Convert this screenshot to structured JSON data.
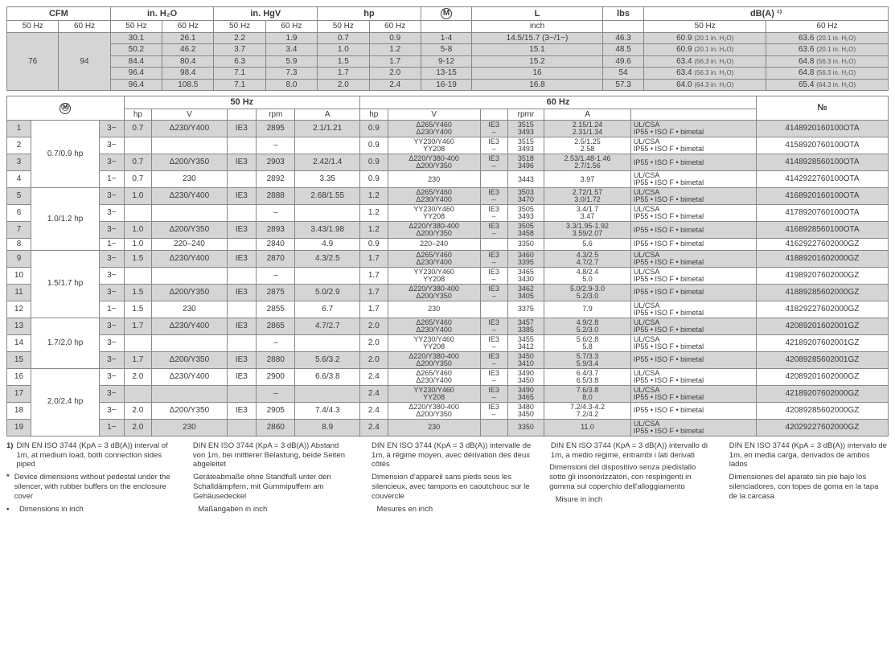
{
  "table1": {
    "groupHeaders": [
      {
        "label": "CFM",
        "span": 2
      },
      {
        "label": "in. H₂O",
        "span": 2
      },
      {
        "label": "in. HgV",
        "span": 2
      },
      {
        "label": "hp",
        "span": 2
      },
      {
        "label": "Ⓜ",
        "span": 1,
        "circled": true
      },
      {
        "label": "L",
        "span": 1
      },
      {
        "label": "lbs",
        "span": 1
      },
      {
        "label": "dB(A) ¹⁾",
        "span": 2
      }
    ],
    "subHeaders": [
      "50 Hz",
      "60 Hz",
      "50 Hz",
      "60 Hz",
      "50 Hz",
      "60 Hz",
      "50 Hz",
      "60 Hz",
      "",
      "inch",
      "",
      "50 Hz",
      "60 Hz"
    ],
    "cfm50": "76",
    "cfm60": "94",
    "dbaSmallUnit": "in. H₂O",
    "rows": [
      {
        "c": [
          "30.1",
          "26.1",
          "2.2",
          "1.9",
          "0.7",
          "0.9",
          "1-4",
          "14.5/15.7 (3~/1~)",
          "46.3"
        ],
        "db50": "60.9",
        "db50u": "(20.1",
        "db60": "63.6",
        "db60u": "(20.1"
      },
      {
        "c": [
          "50.2",
          "46.2",
          "3.7",
          "3.4",
          "1.0",
          "1.2",
          "5-8",
          "15.1",
          "48.5"
        ],
        "db50": "60.9",
        "db50u": "(20.1",
        "db60": "63.6",
        "db60u": "(20.1"
      },
      {
        "c": [
          "84.4",
          "80.4",
          "6.3",
          "5.9",
          "1.5",
          "1.7",
          "9-12",
          "15.2",
          "49.6"
        ],
        "db50": "63.4",
        "db50u": "(56.3",
        "db60": "64.8",
        "db60u": "(56.3"
      },
      {
        "c": [
          "96.4",
          "98.4",
          "7.1",
          "7.3",
          "1.7",
          "2.0",
          "13-15",
          "16",
          "54"
        ],
        "db50": "63.4",
        "db50u": "(56.3",
        "db60": "64.8",
        "db60u": "(56.3"
      },
      {
        "c": [
          "96.4",
          "108.5",
          "7.1",
          "8.0",
          "2.0",
          "2.4",
          "16-19",
          "16.8",
          "57.3"
        ],
        "db50": "64.0",
        "db50u": "(64.3",
        "db60": "65.4",
        "db60u": "(64.3"
      }
    ]
  },
  "table2": {
    "topHeaders": {
      "m": "Ⓜ",
      "hz50": "50 Hz",
      "hz60": "60 Hz",
      "no": "№"
    },
    "subHeaders50": [
      "hp",
      "V",
      "",
      "rpm",
      "A"
    ],
    "subHeaders60": [
      "hp",
      "V",
      "",
      "rpmr",
      "A",
      ""
    ],
    "groups": [
      {
        "label": "0.7/0.9 hp",
        "rows": [
          {
            "n": "1",
            "ph": "3~",
            "hp50": "0.7",
            "v50": "Δ230/Y400",
            "ie50": "IE3",
            "rpm50": "2895",
            "a50": "2.1/1.21",
            "hp60": "0.9",
            "v60a": "Δ265/Y460",
            "v60b": "Δ230/Y400",
            "ie60a": "IE3",
            "ie60b": "–",
            "rpm60a": "3515",
            "rpm60b": "3493",
            "a60a": "2.15/1.24",
            "a60b": "2.31/1.34",
            "cert": "UL/CSA\nIP55 • ISO F • bimetal",
            "no": "4148920160100OTA",
            "shaded": true
          },
          {
            "n": "2",
            "ph": "3~",
            "hp50": "",
            "v50": "",
            "ie50": "",
            "rpm50": "–",
            "a50": "",
            "hp60": "0.9",
            "v60a": "YY230/Y460",
            "v60b": "YY208",
            "ie60a": "IE3",
            "ie60b": "–",
            "rpm60a": "3515",
            "rpm60b": "3493",
            "a60a": "2.5/1.25",
            "a60b": "2.58",
            "cert": "UL/CSA\nIP55 • ISO F • bimetal",
            "no": "4158920760100OTA",
            "shaded": false
          },
          {
            "n": "3",
            "ph": "3~",
            "hp50": "0.7",
            "v50": "Δ200/Y350",
            "ie50": "IE3",
            "rpm50": "2903",
            "a50": "2.42/1.4",
            "hp60": "0.9",
            "v60a": "Δ220/Y380-400",
            "v60b": "Δ200/Y350",
            "ie60a": "IE3",
            "ie60b": "–",
            "rpm60a": "3518",
            "rpm60b": "3496",
            "a60a": "2.53/1.48-1.46",
            "a60b": "2.7/1.56",
            "cert": "IP55 • ISO F • bimetal",
            "no": "4148928560100OTA",
            "shaded": true
          },
          {
            "n": "4",
            "ph": "1~",
            "hp50": "0.7",
            "v50": "230",
            "ie50": "",
            "rpm50": "2892",
            "a50": "3.35",
            "hp60": "0.9",
            "v60a": "230",
            "v60b": "",
            "ie60a": "",
            "ie60b": "",
            "rpm60a": "3443",
            "rpm60b": "",
            "a60a": "3.97",
            "a60b": "",
            "cert": "UL/CSA\nIP55 • ISO F • bimetal",
            "no": "4142922760100OTA",
            "shaded": false
          }
        ]
      },
      {
        "label": "1.0/1.2 hp",
        "rows": [
          {
            "n": "5",
            "ph": "3~",
            "hp50": "1.0",
            "v50": "Δ230/Y400",
            "ie50": "IE3",
            "rpm50": "2888",
            "a50": "2.68/1.55",
            "hp60": "1.2",
            "v60a": "Δ265/Y460",
            "v60b": "Δ230/Y400",
            "ie60a": "IE3",
            "ie60b": "–",
            "rpm60a": "3503",
            "rpm60b": "3470",
            "a60a": "2.72/1.57",
            "a60b": "3.0/1.72",
            "cert": "UL/CSA\nIP55 • ISO F • bimetal",
            "no": "4168920160100OTA",
            "shaded": true
          },
          {
            "n": "6",
            "ph": "3~",
            "hp50": "",
            "v50": "",
            "ie50": "",
            "rpm50": "–",
            "a50": "",
            "hp60": "1.2",
            "v60a": "YY230/Y460",
            "v60b": "YY208",
            "ie60a": "IE3",
            "ie60b": "–",
            "rpm60a": "3505",
            "rpm60b": "3493",
            "a60a": "3.4/1.7",
            "a60b": "3.47",
            "cert": "UL/CSA\nIP55 • ISO F • bimetal",
            "no": "4178920760100OTA",
            "shaded": false
          },
          {
            "n": "7",
            "ph": "3~",
            "hp50": "1.0",
            "v50": "Δ200/Y350",
            "ie50": "IE3",
            "rpm50": "2893",
            "a50": "3.43/1.98",
            "hp60": "1.2",
            "v60a": "Δ220/Y380-400",
            "v60b": "Δ200/Y350",
            "ie60a": "IE3",
            "ie60b": "–",
            "rpm60a": "3505",
            "rpm60b": "3458",
            "a60a": "3.3/1.95-1.92",
            "a60b": "3.59/2.07",
            "cert": "IP55 • ISO F • bimetal",
            "no": "4168928560100OTA",
            "shaded": true
          },
          {
            "n": "8",
            "ph": "1~",
            "hp50": "1.0",
            "v50": "220–240",
            "ie50": "",
            "rpm50": "2840",
            "a50": "4.9",
            "hp60": "0.9",
            "v60a": "220–240",
            "v60b": "",
            "ie60a": "",
            "ie60b": "",
            "rpm60a": "3350",
            "rpm60b": "",
            "a60a": "5.6",
            "a60b": "",
            "cert": "IP55 • ISO F • bimetal",
            "no": "41629227602000GZ",
            "shaded": false
          }
        ]
      },
      {
        "label": "1.5/1.7 hp",
        "rows": [
          {
            "n": "9",
            "ph": "3~",
            "hp50": "1.5",
            "v50": "Δ230/Y400",
            "ie50": "IE3",
            "rpm50": "2870",
            "a50": "4.3/2.5",
            "hp60": "1.7",
            "v60a": "Δ265/Y460",
            "v60b": "Δ230/Y400",
            "ie60a": "IE3",
            "ie60b": "–",
            "rpm60a": "3460",
            "rpm60b": "3395",
            "a60a": "4.3/2.5",
            "a60b": "4.7/2.7",
            "cert": "UL/CSA\nIP55 • ISO F • bimetal",
            "no": "41889201602000GZ",
            "shaded": true
          },
          {
            "n": "10",
            "ph": "3~",
            "hp50": "",
            "v50": "",
            "ie50": "",
            "rpm50": "–",
            "a50": "",
            "hp60": "1.7",
            "v60a": "YY230/Y460",
            "v60b": "YY208",
            "ie60a": "IE3",
            "ie60b": "–",
            "rpm60a": "3465",
            "rpm60b": "3430",
            "a60a": "4.8/2.4",
            "a60b": "5.0",
            "cert": "UL/CSA\nIP55 • ISO F • bimetal",
            "no": "41989207602000GZ",
            "shaded": false
          },
          {
            "n": "11",
            "ph": "3~",
            "hp50": "1.5",
            "v50": "Δ200/Y350",
            "ie50": "IE3",
            "rpm50": "2875",
            "a50": "5.0/2.9",
            "hp60": "1.7",
            "v60a": "Δ220/Y380-400",
            "v60b": "Δ200/Y350",
            "ie60a": "IE3",
            "ie60b": "–",
            "rpm60a": "3462",
            "rpm60b": "3405",
            "a60a": "5.0/2.9-3.0",
            "a60b": "5.2/3.0",
            "cert": "IP55 • ISO F • bimetal",
            "no": "41889285602000GZ",
            "shaded": true
          },
          {
            "n": "12",
            "ph": "1~",
            "hp50": "1.5",
            "v50": "230",
            "ie50": "",
            "rpm50": "2855",
            "a50": "6.7",
            "hp60": "1.7",
            "v60a": "230",
            "v60b": "",
            "ie60a": "",
            "ie60b": "",
            "rpm60a": "3375",
            "rpm60b": "",
            "a60a": "7.9",
            "a60b": "",
            "cert": "UL/CSA\nIP55 • ISO F • bimetal",
            "no": "41829227602000GZ",
            "shaded": false
          }
        ]
      },
      {
        "label": "1.7/2.0 hp",
        "rows": [
          {
            "n": "13",
            "ph": "3~",
            "hp50": "1.7",
            "v50": "Δ230/Y400",
            "ie50": "IE3",
            "rpm50": "2865",
            "a50": "4.7/2.7",
            "hp60": "2.0",
            "v60a": "Δ265/Y460",
            "v60b": "Δ230/Y400",
            "ie60a": "IE3",
            "ie60b": "–",
            "rpm60a": "3457",
            "rpm60b": "3385",
            "a60a": "4.9/2.8",
            "a60b": "5.2/3.0",
            "cert": "UL/CSA\nIP55 • ISO F • bimetal",
            "no": "42089201602001GZ",
            "shaded": true
          },
          {
            "n": "14",
            "ph": "3~",
            "hp50": "",
            "v50": "",
            "ie50": "",
            "rpm50": "–",
            "a50": "",
            "hp60": "2.0",
            "v60a": "YY230/Y460",
            "v60b": "YY208",
            "ie60a": "IE3",
            "ie60b": "–",
            "rpm60a": "3455",
            "rpm60b": "3412",
            "a60a": "5.6/2.8",
            "a60b": "5.8",
            "cert": "UL/CSA\nIP55 • ISO F • bimetal",
            "no": "42189207602001GZ",
            "shaded": false
          },
          {
            "n": "15",
            "ph": "3~",
            "hp50": "1.7",
            "v50": "Δ200/Y350",
            "ie50": "IE3",
            "rpm50": "2880",
            "a50": "5.6/3.2",
            "hp60": "2.0",
            "v60a": "Δ220/Y380-400",
            "v60b": "Δ200/Y350",
            "ie60a": "IE3",
            "ie60b": "–",
            "rpm60a": "3450",
            "rpm60b": "3410",
            "a60a": "5.7/3.3",
            "a60b": "5.9/3.4",
            "cert": "IP55 • ISO F • bimetal",
            "no": "42089285602001GZ",
            "shaded": true
          }
        ]
      },
      {
        "label": "2.0/2.4 hp",
        "rows": [
          {
            "n": "16",
            "ph": "3~",
            "hp50": "2.0",
            "v50": "Δ230/Y400",
            "ie50": "IE3",
            "rpm50": "2900",
            "a50": "6.6/3.8",
            "hp60": "2.4",
            "v60a": "Δ265/Y460",
            "v60b": "Δ230/Y400",
            "ie60a": "IE3",
            "ie60b": "–",
            "rpm60a": "3490",
            "rpm60b": "3450",
            "a60a": "6.4/3.7",
            "a60b": "6.5/3.8",
            "cert": "UL/CSA\nIP55 • ISO F • bimetal",
            "no": "42089201602000GZ",
            "shaded": false
          },
          {
            "n": "17",
            "ph": "3~",
            "hp50": "",
            "v50": "",
            "ie50": "",
            "rpm50": "–",
            "a50": "",
            "hp60": "2.4",
            "v60a": "YY230/Y460",
            "v60b": "YY208",
            "ie60a": "IE3",
            "ie60b": "–",
            "rpm60a": "3490",
            "rpm60b": "3465",
            "a60a": "7.6/3.8",
            "a60b": "8.0",
            "cert": "UL/CSA\nIP55 • ISO F • bimetal",
            "no": "42189207602000GZ",
            "shaded": true
          },
          {
            "n": "18",
            "ph": "3~",
            "hp50": "2.0",
            "v50": "Δ200/Y350",
            "ie50": "IE3",
            "rpm50": "2905",
            "a50": "7.4/4.3",
            "hp60": "2.4",
            "v60a": "Δ220/Y380-400",
            "v60b": "Δ200/Y350",
            "ie60a": "IE3",
            "ie60b": "–",
            "rpm60a": "3480",
            "rpm60b": "3450",
            "a60a": "7.2/4.3-4.2",
            "a60b": "7.2/4.2",
            "cert": "IP55 • ISO F • bimetal",
            "no": "42089285602000GZ",
            "shaded": false
          },
          {
            "n": "19",
            "ph": "1~",
            "hp50": "2.0",
            "v50": "230",
            "ie50": "",
            "rpm50": "2860",
            "a50": "8.9",
            "hp60": "2.4",
            "v60a": "230",
            "v60b": "",
            "ie60a": "",
            "ie60b": "",
            "rpm60a": "3350",
            "rpm60b": "",
            "a60a": "11.0",
            "a60b": "",
            "cert": "UL/CSA\nIP55 • ISO F • bimetal",
            "no": "42029227602000GZ",
            "shaded": true
          }
        ]
      }
    ]
  },
  "footnotes": {
    "cols": [
      {
        "items": [
          {
            "mark": "1)",
            "text": "DIN EN ISO 3744 (KpA = 3 dB(A)) interval of 1m, at medium load, both connection sides piped"
          },
          {
            "mark": "*",
            "text": "Device dimensions without pedestal under the silencer, with rubber buffers on the enclosure cover"
          },
          {
            "mark": "•",
            "text": "Dimensions in inch"
          }
        ]
      },
      {
        "items": [
          {
            "mark": "",
            "text": "DIN EN ISO 3744 (KpA = 3 dB(A)) Abstand von 1m, bei mittlerer Belastung, beide Seiten abgeleitet"
          },
          {
            "mark": "",
            "text": "Geräteabmaße ohne Standfuß unter den Schalldämpfern, mit Gummipuffern am Gehäusedeckel"
          },
          {
            "mark": "",
            "text": "Maßangaben in inch"
          }
        ]
      },
      {
        "items": [
          {
            "mark": "",
            "text": "DIN EN ISO 3744 (KpA = 3 dB(A)) intervalle de 1m, à régime moyen, avec dérivation des deux côtés"
          },
          {
            "mark": "",
            "text": "Dimension d'appareil sans pieds sous les silencieux, avec tampons en caoutchouc sur le couvercle"
          },
          {
            "mark": "",
            "text": "Mesures en inch"
          }
        ]
      },
      {
        "items": [
          {
            "mark": "",
            "text": "DIN EN ISO 3744 (KpA = 3 dB(A)) intervallo di 1m, a medio regime, entrambi i lati derivati"
          },
          {
            "mark": "",
            "text": "Dimensioni del dispositivo senza piedistallo sotto gli insonorizzatori, con respingenti in gomma sul coperchio dell'alloggiamento"
          },
          {
            "mark": "",
            "text": "Misure in inch"
          }
        ]
      },
      {
        "items": [
          {
            "mark": "",
            "text": "DIN EN ISO 3744 (KpA = 3 dB(A)) intervalo de 1m, en media carga, derivados de ambos lados"
          },
          {
            "mark": "",
            "text": "Dimensiones del aparato sin pie bajo los silenciadores, con topes de goma en la tapa de la carcasa"
          },
          {
            "mark": "",
            "text": ""
          }
        ]
      }
    ]
  },
  "colors": {
    "shaded": "#d5d5d5",
    "border": "#888",
    "text": "#3a3a3a"
  }
}
